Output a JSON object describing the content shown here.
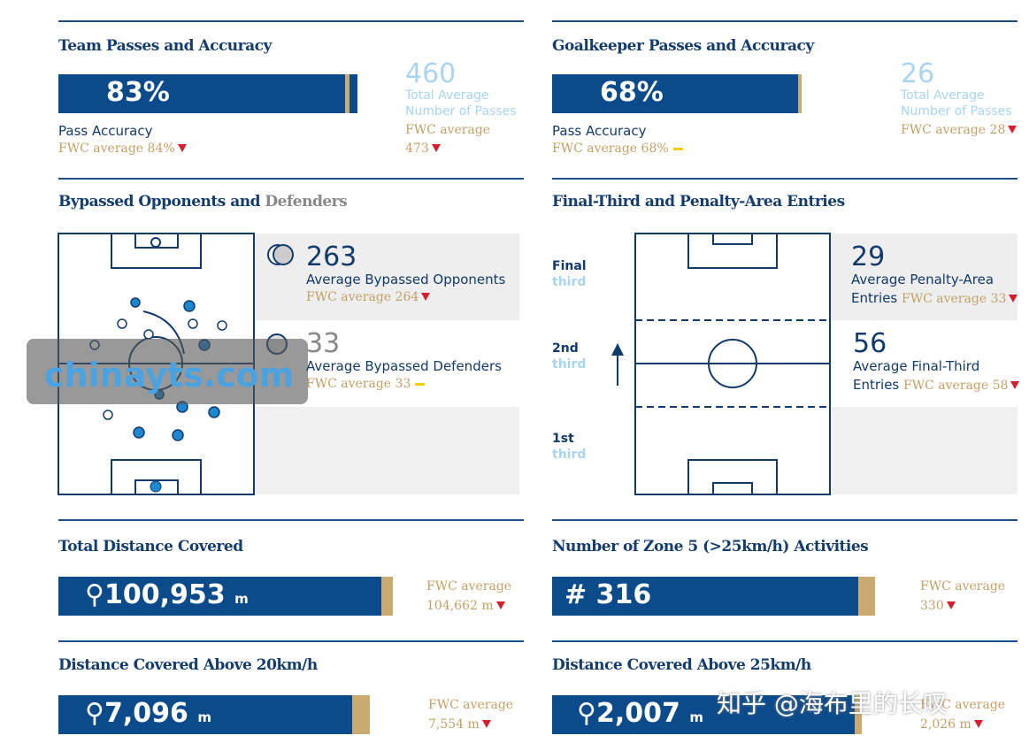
{
  "panels": [
    {
      "title": "Team Passes and Accuracy",
      "stat": "83%",
      "stat_label": "Pass Accuracy",
      "fwc": "FWC average 84%",
      "side_stat": "460",
      "side_label": "Total Average Number of Passes",
      "side_fwc_label": "FWC average",
      "side_fwc_value": "473"
    },
    {
      "title": "Goalkeeper Passes and Accuracy",
      "stat": "68%",
      "stat_label": "Pass Accuracy",
      "fwc": "FWC average 68%",
      "side_stat": "26",
      "side_label": "Total Average Number of Passes",
      "side_fwc_label": "FWC average 28"
    }
  ],
  "bypassed": {
    "title_main": "Bypassed Opponents and",
    "title_accent": "Defenders",
    "opponents": "263",
    "opponents_label": "Average Bypassed Opponents",
    "opponents_fwc": "FWC average 264",
    "defenders": "33",
    "defenders_label": "Average Bypassed Defenders",
    "defenders_fwc": "FWC average 33"
  },
  "entries": {
    "title": "Final-Third and Penalty-Area Entries",
    "zones": [
      {
        "name": "Final",
        "sub": "third"
      },
      {
        "name": "2nd",
        "sub": "third"
      },
      {
        "name": "1st",
        "sub": "third"
      }
    ],
    "penalty": "29",
    "penalty_label": [
      "Average Penalty-Area",
      "Entries"
    ],
    "penalty_fwc": "FWC average 33",
    "final": "56",
    "final_label": [
      "Average Final-Third",
      "Entries"
    ],
    "final_fwc": "FWC average 58"
  },
  "distance_panels": [
    {
      "title": "Total Distance Covered",
      "value": "100,953",
      "unit": "m",
      "fwc_label": "FWC average",
      "fwc_value": "104,662 m"
    },
    {
      "title": "Number of Zone 5 (>25km/h) Activities",
      "prefix": "#",
      "value": "316",
      "fwc_label": "FWC average",
      "fwc_value": "330"
    },
    {
      "title": "Distance Covered Above 20km/h",
      "value": "7,096",
      "unit": "m",
      "fwc_label": "FWC average",
      "fwc_value": "7,554 m"
    },
    {
      "title": "Distance Covered Above 25km/h",
      "value": "2,007",
      "unit": "m",
      "fwc_label": "FWC average",
      "fwc_value": "2,026 m"
    }
  ],
  "watermarks": [
    "chinayts.com",
    "知乎 @海布里的长叹"
  ]
}
